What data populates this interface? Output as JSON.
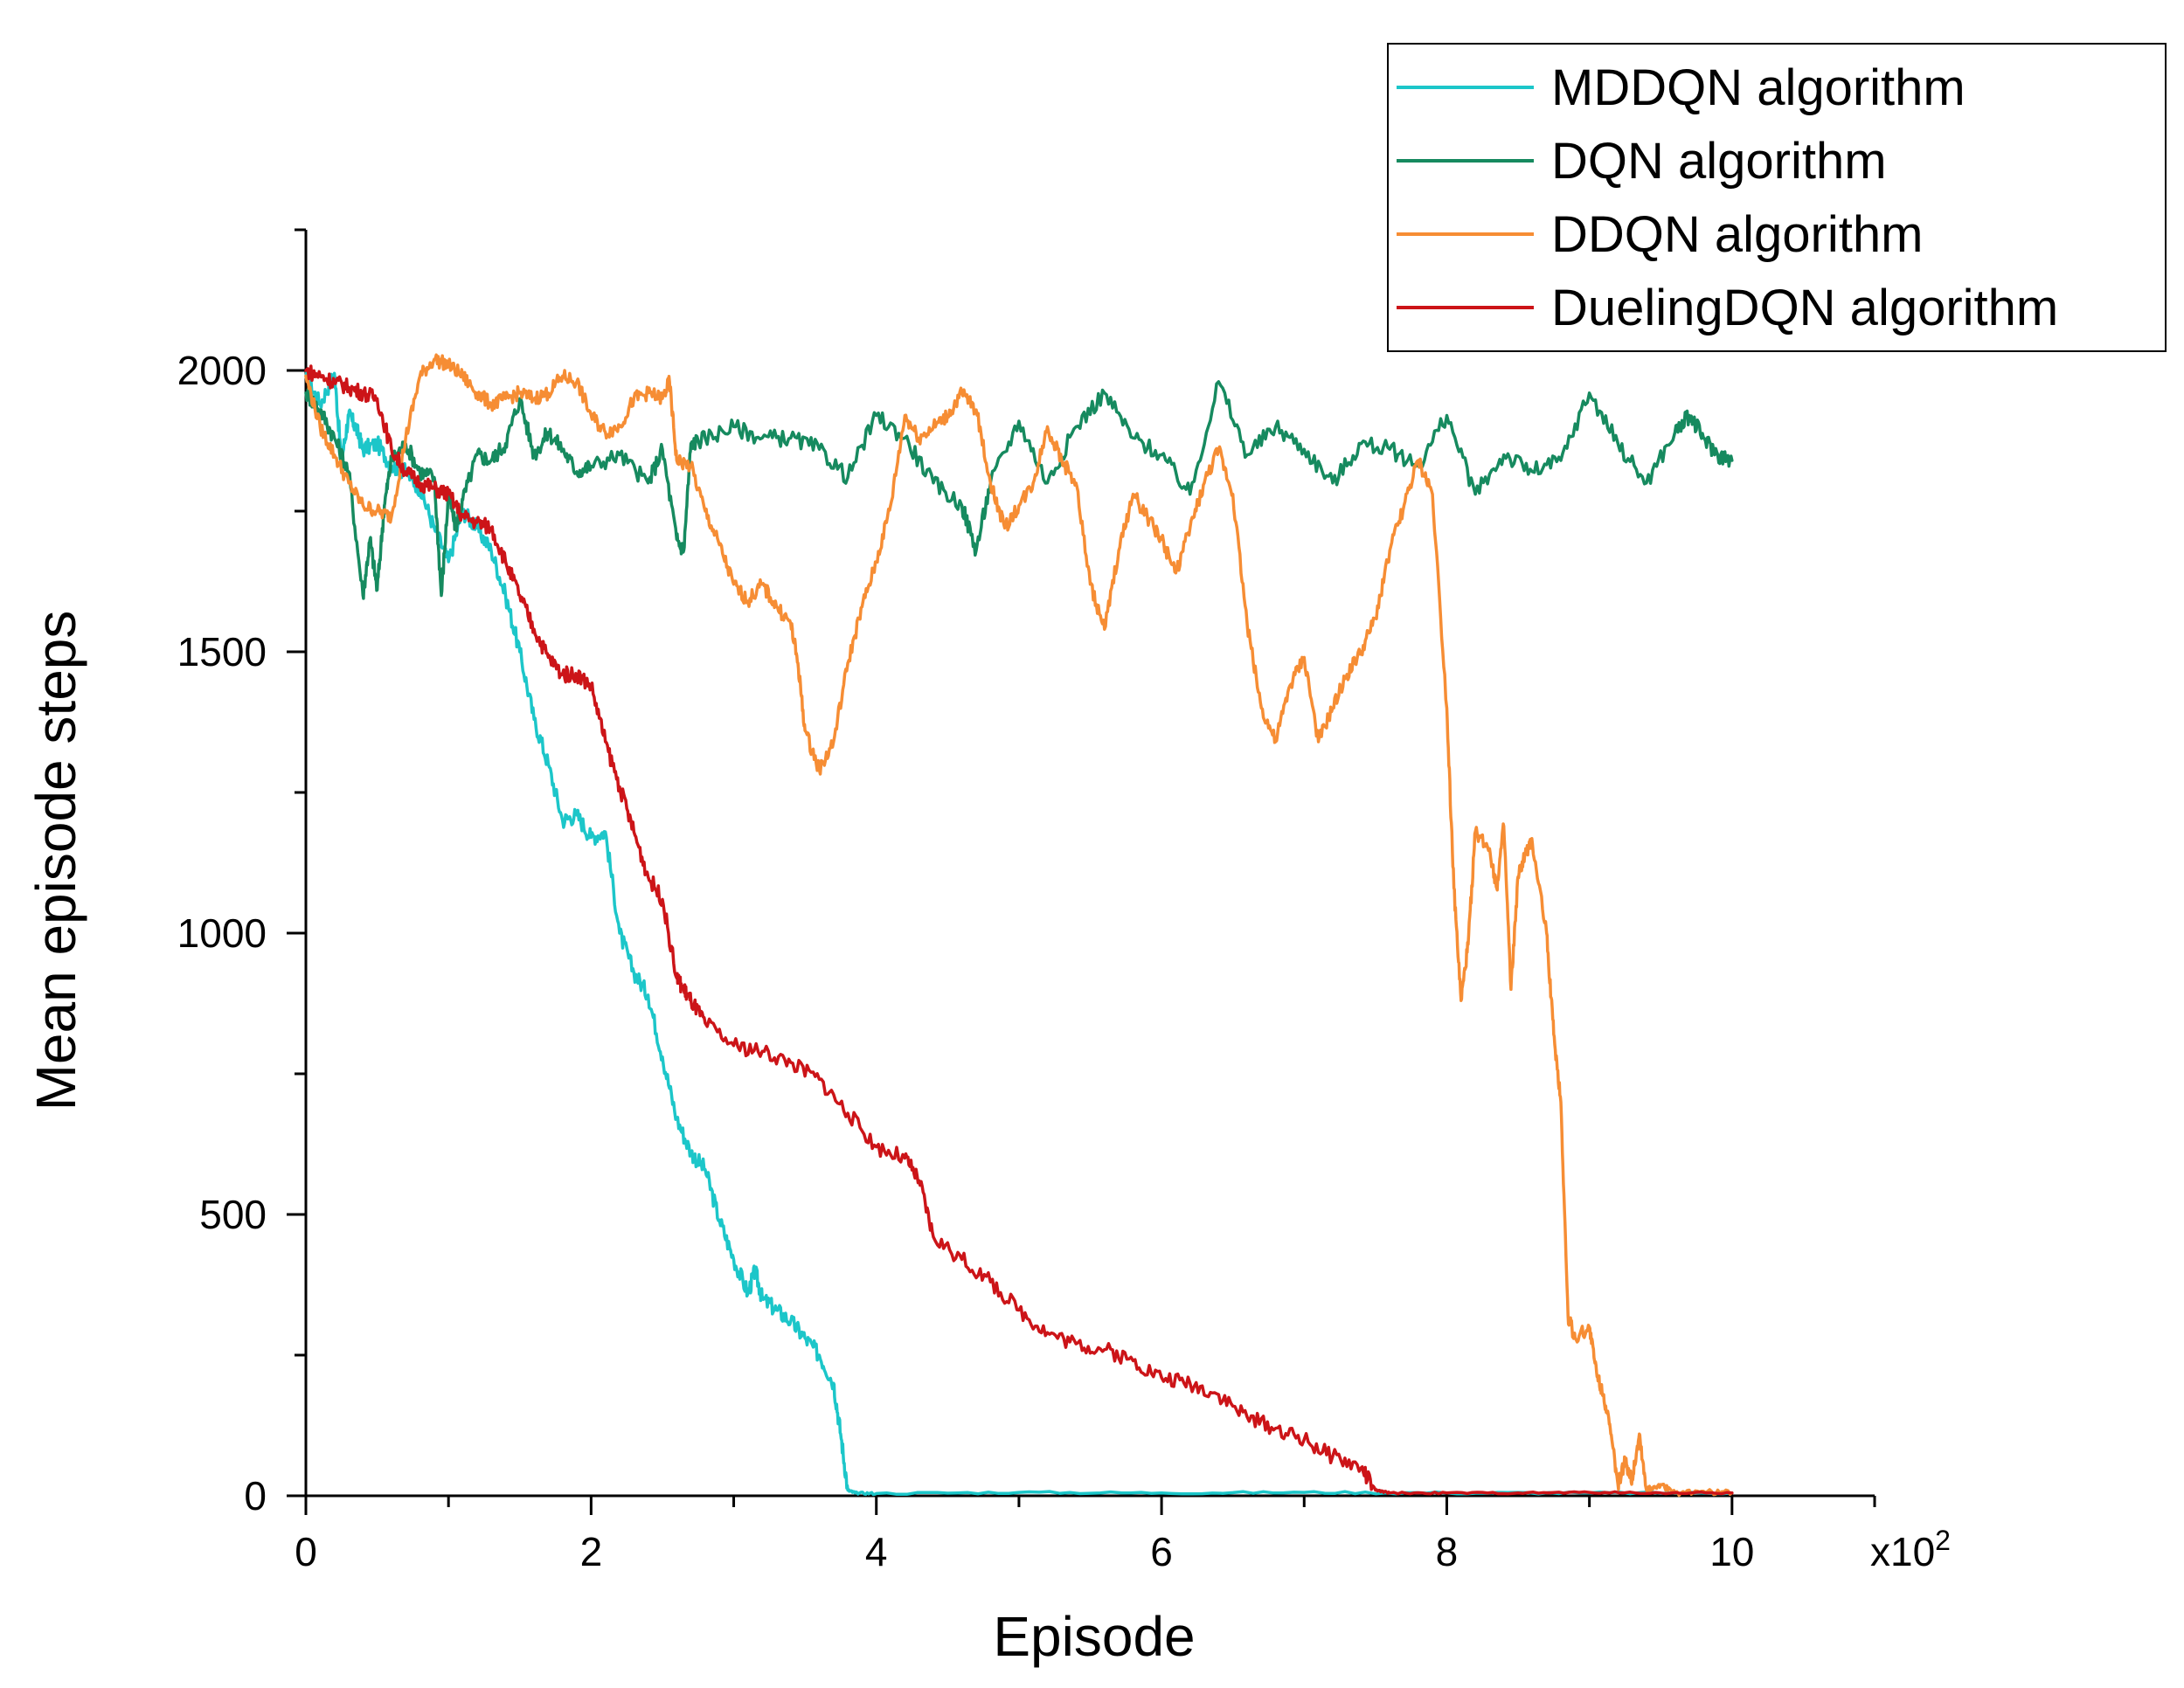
{
  "chart_data": {
    "type": "line",
    "title": "",
    "xlabel": "Episode",
    "ylabel": "Mean episode steps",
    "x_multiplier_label": "x10",
    "x_multiplier_exp": "2",
    "xlim": [
      0,
      11
    ],
    "ylim": [
      0,
      2250
    ],
    "x_ticks": [
      0,
      2,
      4,
      6,
      8,
      10
    ],
    "x_minor_ticks": [
      1,
      3,
      5,
      7,
      9,
      11
    ],
    "y_ticks": [
      0,
      500,
      1000,
      1500,
      2000
    ],
    "y_minor_ticks": [
      250,
      750,
      1250,
      1750,
      2250
    ],
    "grid": false,
    "legend_position": "top-right",
    "series": [
      {
        "name": "MDDQN algorithm",
        "color": "#1CC6C9",
        "x": [
          0,
          0.1,
          0.2,
          0.25,
          0.3,
          0.35,
          0.4,
          0.5,
          0.6,
          0.7,
          0.8,
          0.9,
          1.0,
          1.1,
          1.2,
          1.3,
          1.4,
          1.5,
          1.6,
          1.7,
          1.8,
          1.9,
          2.0,
          2.1,
          2.2,
          2.3,
          2.4,
          2.5,
          2.6,
          2.7,
          2.8,
          2.9,
          3.0,
          3.1,
          3.15,
          3.2,
          3.3,
          3.4,
          3.5,
          3.6,
          3.7,
          3.75,
          3.8,
          3.85,
          4.0,
          5.0,
          6.0,
          7.0,
          8.0,
          9.0,
          10.0
        ],
        "y": [
          1990,
          1940,
          1995,
          1840,
          1920,
          1900,
          1860,
          1870,
          1830,
          1820,
          1790,
          1720,
          1660,
          1750,
          1720,
          1680,
          1600,
          1500,
          1380,
          1300,
          1200,
          1210,
          1170,
          1180,
          1000,
          930,
          890,
          780,
          670,
          610,
          580,
          490,
          420,
          360,
          400,
          350,
          330,
          310,
          280,
          250,
          200,
          110,
          10,
          5,
          4,
          6,
          5,
          6,
          5,
          5,
          5
        ]
      },
      {
        "name": "DQN algorithm",
        "color": "#168A5F",
        "x": [
          0,
          0.1,
          0.2,
          0.3,
          0.4,
          0.45,
          0.5,
          0.55,
          0.6,
          0.7,
          0.8,
          0.9,
          0.95,
          1.0,
          1.05,
          1.1,
          1.2,
          1.3,
          1.4,
          1.5,
          1.6,
          1.7,
          1.8,
          1.9,
          2.0,
          2.2,
          2.4,
          2.5,
          2.6,
          2.65,
          2.7,
          2.8,
          3.0,
          3.2,
          3.4,
          3.6,
          3.8,
          4.0,
          4.2,
          4.4,
          4.6,
          4.7,
          4.8,
          5.0,
          5.2,
          5.4,
          5.6,
          5.8,
          6.0,
          6.2,
          6.4,
          6.6,
          6.8,
          7.0,
          7.2,
          7.4,
          7.6,
          7.8,
          8.0,
          8.2,
          8.4,
          8.6,
          8.8,
          9.0,
          9.2,
          9.4,
          9.6,
          9.7,
          9.8,
          9.9,
          10.0
        ],
        "y": [
          1960,
          1930,
          1880,
          1820,
          1600,
          1700,
          1610,
          1760,
          1840,
          1870,
          1820,
          1810,
          1600,
          1780,
          1720,
          1770,
          1850,
          1840,
          1870,
          1950,
          1850,
          1890,
          1860,
          1820,
          1830,
          1850,
          1800,
          1860,
          1700,
          1680,
          1870,
          1880,
          1900,
          1880,
          1880,
          1860,
          1810,
          1920,
          1880,
          1800,
          1760,
          1680,
          1800,
          1910,
          1800,
          1900,
          1960,
          1880,
          1850,
          1780,
          1980,
          1850,
          1900,
          1860,
          1800,
          1870,
          1860,
          1830,
          1920,
          1780,
          1850,
          1820,
          1840,
          1960,
          1870,
          1800,
          1890,
          1920,
          1880,
          1850,
          1840
        ]
      },
      {
        "name": "DDQN algorithm",
        "color": "#F68D34",
        "x": [
          0,
          0.1,
          0.2,
          0.3,
          0.4,
          0.5,
          0.6,
          0.7,
          0.8,
          0.9,
          1.0,
          1.1,
          1.2,
          1.3,
          1.4,
          1.5,
          1.6,
          1.7,
          1.8,
          1.9,
          2.0,
          2.1,
          2.2,
          2.3,
          2.4,
          2.5,
          2.55,
          2.6,
          2.7,
          2.8,
          2.9,
          3.0,
          3.1,
          3.2,
          3.3,
          3.4,
          3.45,
          3.5,
          3.6,
          3.7,
          3.8,
          3.9,
          4.0,
          4.1,
          4.2,
          4.3,
          4.4,
          4.5,
          4.6,
          4.7,
          4.8,
          4.9,
          5.0,
          5.1,
          5.2,
          5.3,
          5.4,
          5.5,
          5.6,
          5.7,
          5.8,
          5.9,
          6.0,
          6.1,
          6.2,
          6.3,
          6.4,
          6.5,
          6.6,
          6.7,
          6.8,
          6.9,
          7.0,
          7.1,
          7.2,
          7.3,
          7.4,
          7.5,
          7.6,
          7.7,
          7.8,
          7.9,
          8.0,
          8.05,
          8.1,
          8.15,
          8.2,
          8.3,
          8.35,
          8.4,
          8.45,
          8.5,
          8.55,
          8.6,
          8.7,
          8.75,
          8.8,
          8.85,
          8.9,
          9.0,
          9.05,
          9.1,
          9.15,
          9.2,
          9.25,
          9.3,
          9.35,
          9.4,
          9.5,
          9.6,
          9.8,
          10.0
        ],
        "y": [
          1990,
          1900,
          1850,
          1800,
          1760,
          1750,
          1740,
          1880,
          1990,
          2020,
          2010,
          1990,
          1960,
          1940,
          1950,
          1960,
          1950,
          1960,
          1990,
          1980,
          1920,
          1890,
          1900,
          1950,
          1960,
          1950,
          1980,
          1840,
          1830,
          1750,
          1690,
          1620,
          1590,
          1620,
          1580,
          1550,
          1480,
          1360,
          1290,
          1340,
          1480,
          1580,
          1660,
          1760,
          1920,
          1880,
          1900,
          1920,
          1960,
          1930,
          1800,
          1720,
          1760,
          1800,
          1900,
          1840,
          1800,
          1620,
          1540,
          1680,
          1780,
          1740,
          1700,
          1640,
          1720,
          1800,
          1860,
          1780,
          1550,
          1400,
          1340,
          1440,
          1490,
          1340,
          1400,
          1460,
          1500,
          1560,
          1680,
          1760,
          1840,
          1780,
          1400,
          1080,
          880,
          980,
          1180,
          1150,
          1080,
          1190,
          900,
          1100,
          1140,
          1160,
          1000,
          820,
          700,
          320,
          280,
          300,
          220,
          180,
          110,
          20,
          60,
          30,
          110,
          10,
          20,
          5,
          8,
          5
        ]
      },
      {
        "name": "DuelingDQN algorithm",
        "color": "#CC1418",
        "x": [
          0,
          0.1,
          0.2,
          0.3,
          0.4,
          0.5,
          0.6,
          0.7,
          0.8,
          0.9,
          1.0,
          1.1,
          1.2,
          1.3,
          1.4,
          1.5,
          1.6,
          1.7,
          1.8,
          1.9,
          2.0,
          2.1,
          2.2,
          2.3,
          2.4,
          2.5,
          2.6,
          2.65,
          2.7,
          2.8,
          3.0,
          3.2,
          3.4,
          3.6,
          3.8,
          4.0,
          4.2,
          4.3,
          4.4,
          4.6,
          4.8,
          5.0,
          5.2,
          5.4,
          5.6,
          5.8,
          6.0,
          6.2,
          6.4,
          6.6,
          6.8,
          7.0,
          7.2,
          7.4,
          7.5,
          7.6,
          8.0,
          8.5,
          9.0,
          9.5,
          10.0
        ],
        "y": [
          2000,
          1990,
          1980,
          1970,
          1960,
          1950,
          1860,
          1820,
          1800,
          1790,
          1780,
          1740,
          1730,
          1720,
          1660,
          1600,
          1540,
          1490,
          1460,
          1460,
          1440,
          1340,
          1260,
          1180,
          1100,
          1060,
          920,
          900,
          880,
          840,
          800,
          790,
          770,
          740,
          680,
          620,
          600,
          560,
          460,
          420,
          380,
          330,
          290,
          270,
          260,
          240,
          210,
          200,
          180,
          140,
          120,
          100,
          70,
          50,
          10,
          5,
          5,
          5,
          6,
          5,
          5
        ]
      }
    ]
  }
}
